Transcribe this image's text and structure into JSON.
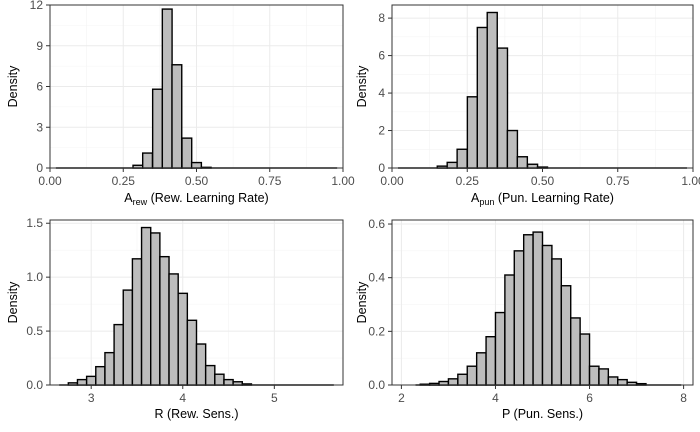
{
  "chart_data": [
    {
      "type": "histogram",
      "xlabel_main": "A",
      "xlabel_sub": "rew",
      "xlabel_rest": " (Rew. Learning Rate)",
      "ylabel": "Density",
      "xlim": [
        0,
        1
      ],
      "ylim": [
        0,
        12
      ],
      "xticks": [
        0.0,
        0.25,
        0.5,
        0.75,
        1.0
      ],
      "xtick_labels": [
        "0.00",
        "0.25",
        "0.50",
        "0.75",
        "1.00"
      ],
      "yticks": [
        0,
        3,
        6,
        9,
        12
      ],
      "ytick_labels": [
        "0",
        "3",
        "6",
        "9",
        "12"
      ],
      "line_range": [
        0.02,
        0.98
      ],
      "bin_width": 0.0333,
      "bins": [
        [
          0.3,
          0.2
        ],
        [
          0.333,
          1.1
        ],
        [
          0.367,
          5.8
        ],
        [
          0.4,
          11.7
        ],
        [
          0.433,
          7.6
        ],
        [
          0.467,
          2.2
        ],
        [
          0.5,
          0.4
        ],
        [
          0.533,
          0.05
        ]
      ]
    },
    {
      "type": "histogram",
      "xlabel_main": "A",
      "xlabel_sub": "pun",
      "xlabel_rest": " (Pun. Learning Rate)",
      "ylabel": "Density",
      "xlim": [
        0,
        1
      ],
      "ylim": [
        0,
        8.7
      ],
      "xticks": [
        0.0,
        0.25,
        0.5,
        0.75,
        1.0
      ],
      "xtick_labels": [
        "0.00",
        "0.25",
        "0.50",
        "0.75",
        "1.00"
      ],
      "yticks": [
        0,
        2,
        4,
        6,
        8
      ],
      "ytick_labels": [
        "0",
        "2",
        "4",
        "6",
        "8"
      ],
      "line_range": [
        0.02,
        0.98
      ],
      "bin_width": 0.0333,
      "bins": [
        [
          0.167,
          0.1
        ],
        [
          0.2,
          0.3
        ],
        [
          0.233,
          1.0
        ],
        [
          0.267,
          3.8
        ],
        [
          0.3,
          7.5
        ],
        [
          0.333,
          8.3
        ],
        [
          0.367,
          6.4
        ],
        [
          0.4,
          2.0
        ],
        [
          0.433,
          0.6
        ],
        [
          0.467,
          0.2
        ],
        [
          0.5,
          0.05
        ]
      ]
    },
    {
      "type": "histogram",
      "xlabel_main": "R (Rew. Sens.)",
      "xlabel_sub": "",
      "xlabel_rest": "",
      "ylabel": "Density",
      "xlim": [
        2.55,
        5.75
      ],
      "ylim": [
        0,
        1.53
      ],
      "xticks": [
        3,
        4,
        5
      ],
      "xtick_labels": [
        "3",
        "4",
        "5"
      ],
      "yticks": [
        0.0,
        0.5,
        1.0,
        1.5
      ],
      "ytick_labels": [
        "0.0",
        "0.5",
        "1.0",
        "1.5"
      ],
      "line_range": [
        2.65,
        5.65
      ],
      "bin_width": 0.1,
      "bins": [
        [
          2.8,
          0.02
        ],
        [
          2.9,
          0.05
        ],
        [
          3.0,
          0.08
        ],
        [
          3.1,
          0.17
        ],
        [
          3.2,
          0.3
        ],
        [
          3.3,
          0.56
        ],
        [
          3.4,
          0.88
        ],
        [
          3.5,
          1.17
        ],
        [
          3.6,
          1.46
        ],
        [
          3.7,
          1.41
        ],
        [
          3.8,
          1.19
        ],
        [
          3.9,
          1.03
        ],
        [
          4.0,
          0.85
        ],
        [
          4.1,
          0.6
        ],
        [
          4.2,
          0.38
        ],
        [
          4.3,
          0.18
        ],
        [
          4.4,
          0.1
        ],
        [
          4.5,
          0.05
        ],
        [
          4.6,
          0.03
        ],
        [
          4.7,
          0.01
        ]
      ]
    },
    {
      "type": "histogram",
      "xlabel_main": "P (Pun. Sens.)",
      "xlabel_sub": "",
      "xlabel_rest": "",
      "ylabel": "Density",
      "xlim": [
        1.8,
        8.2
      ],
      "ylim": [
        0,
        0.615
      ],
      "xticks": [
        2,
        4,
        6,
        8
      ],
      "xtick_labels": [
        "2",
        "4",
        "6",
        "8"
      ],
      "yticks": [
        0.0,
        0.2,
        0.4,
        0.6
      ],
      "ytick_labels": [
        "0.0",
        "0.2",
        "0.4",
        "0.6"
      ],
      "line_range": [
        2.3,
        7.95
      ],
      "bin_width": 0.2,
      "bins": [
        [
          2.5,
          0.003
        ],
        [
          2.7,
          0.006
        ],
        [
          2.9,
          0.013
        ],
        [
          3.1,
          0.023
        ],
        [
          3.3,
          0.04
        ],
        [
          3.5,
          0.07
        ],
        [
          3.7,
          0.12
        ],
        [
          3.9,
          0.18
        ],
        [
          4.1,
          0.27
        ],
        [
          4.3,
          0.41
        ],
        [
          4.5,
          0.5
        ],
        [
          4.7,
          0.56
        ],
        [
          4.9,
          0.57
        ],
        [
          5.1,
          0.52
        ],
        [
          5.3,
          0.47
        ],
        [
          5.5,
          0.37
        ],
        [
          5.7,
          0.25
        ],
        [
          5.9,
          0.19
        ],
        [
          6.1,
          0.07
        ],
        [
          6.3,
          0.06
        ],
        [
          6.5,
          0.03
        ],
        [
          6.7,
          0.02
        ],
        [
          6.9,
          0.01
        ],
        [
          7.1,
          0.005
        ]
      ]
    }
  ]
}
